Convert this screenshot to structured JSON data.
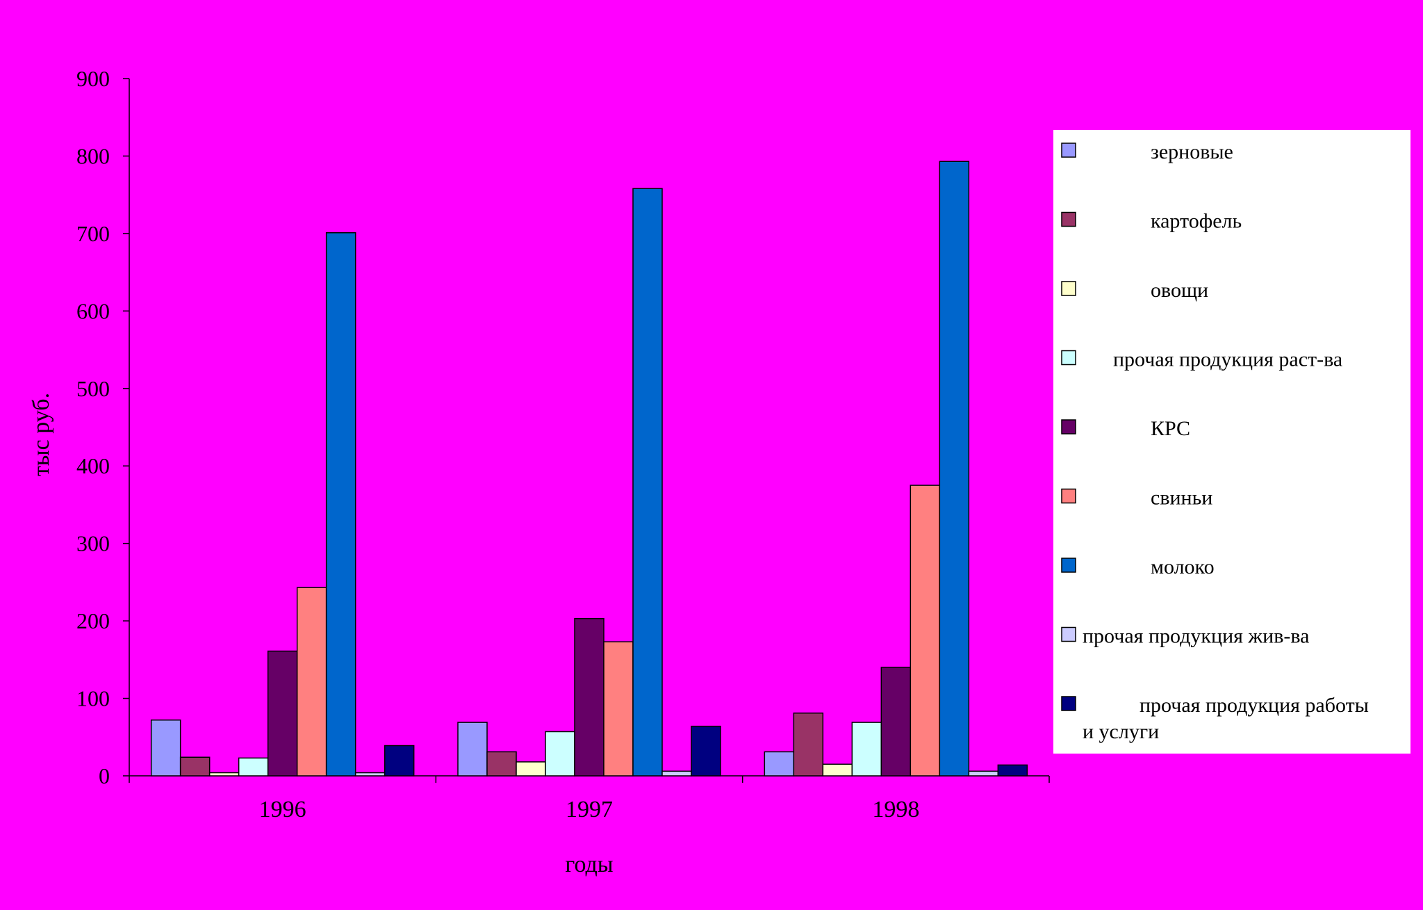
{
  "chart_data": {
    "type": "bar",
    "title": "",
    "xlabel": "годы",
    "ylabel": "тыс руб.",
    "ylim": [
      0,
      900
    ],
    "yticks": [
      0,
      100,
      200,
      300,
      400,
      500,
      600,
      700,
      800,
      900
    ],
    "grid": false,
    "legend_position": "right",
    "categories": [
      "1996",
      "1997",
      "1998"
    ],
    "series": [
      {
        "name": "зерновые",
        "color": "#9999ff",
        "values": [
          72,
          69,
          31
        ]
      },
      {
        "name": "картофель",
        "color": "#993366",
        "values": [
          24,
          31,
          81
        ]
      },
      {
        "name": "овощи",
        "color": "#ffffcc",
        "values": [
          4,
          18,
          15
        ]
      },
      {
        "name": "прочая продукция раст-ва",
        "color": "#ccffff",
        "values": [
          23,
          57,
          69
        ]
      },
      {
        "name": "КРС",
        "color": "#660066",
        "values": [
          161,
          203,
          140
        ]
      },
      {
        "name": "свиньи",
        "color": "#ff8080",
        "values": [
          243,
          173,
          375
        ]
      },
      {
        "name": "молоко",
        "color": "#0066cc",
        "values": [
          701,
          758,
          793
        ]
      },
      {
        "name": "прочая продукция жив-ва",
        "color": "#ccccff",
        "values": [
          4,
          6,
          6
        ]
      },
      {
        "name": "прочая продукция работы и услуги",
        "color": "#000080",
        "values": [
          39,
          64,
          14
        ]
      }
    ]
  }
}
